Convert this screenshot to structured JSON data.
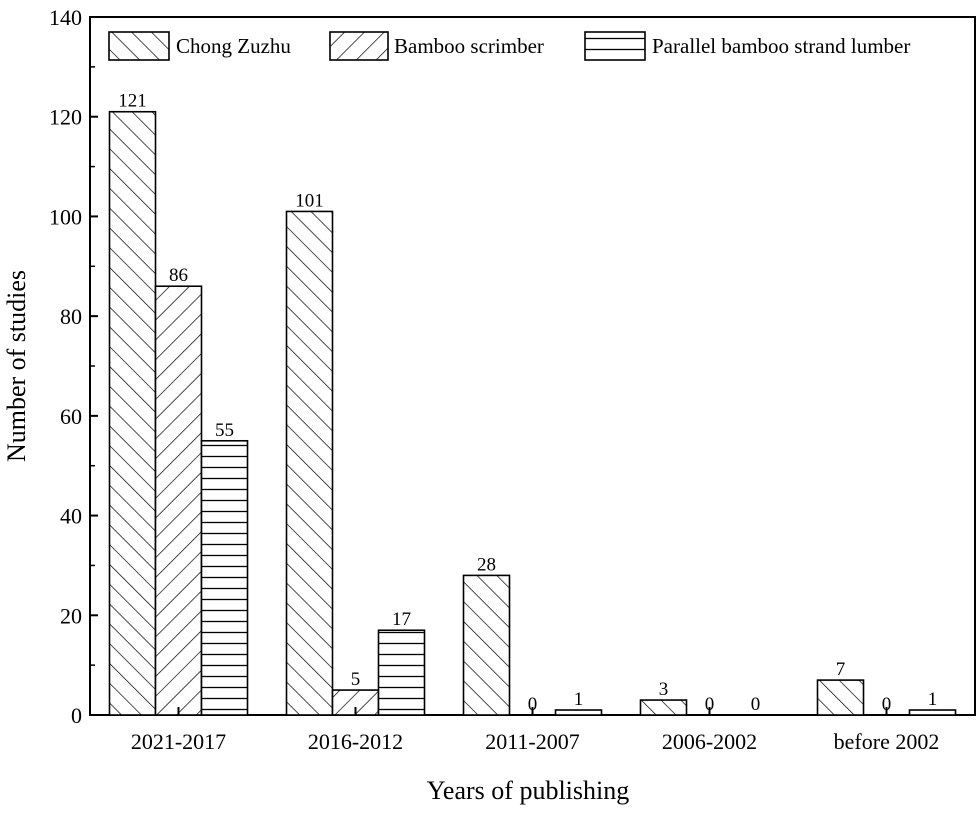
{
  "chart_data": {
    "type": "bar",
    "title": "",
    "xlabel": "Years of publishing",
    "ylabel": "Number of studies",
    "ylim": [
      0,
      140
    ],
    "yticks": [
      0,
      20,
      40,
      60,
      80,
      100,
      120,
      140
    ],
    "categories": [
      "2021-2017",
      "2016-2012",
      "2011-2007",
      "2006-2002",
      "before 2002"
    ],
    "series": [
      {
        "name": "Chong Zuzhu",
        "pattern": "forward-diagonal-hatch",
        "values": [
          121,
          101,
          28,
          3,
          7
        ]
      },
      {
        "name": "Bamboo scrimber",
        "pattern": "back-diagonal-hatch",
        "values": [
          86,
          5,
          0,
          0,
          0
        ]
      },
      {
        "name": "Parallel bamboo strand lumber",
        "pattern": "horizontal-hatch",
        "values": [
          55,
          17,
          1,
          0,
          1
        ]
      }
    ],
    "data_labels": true,
    "legend_position": "top",
    "grid": false,
    "colors": {
      "stroke": "#000000",
      "fill": "#ffffff"
    }
  }
}
